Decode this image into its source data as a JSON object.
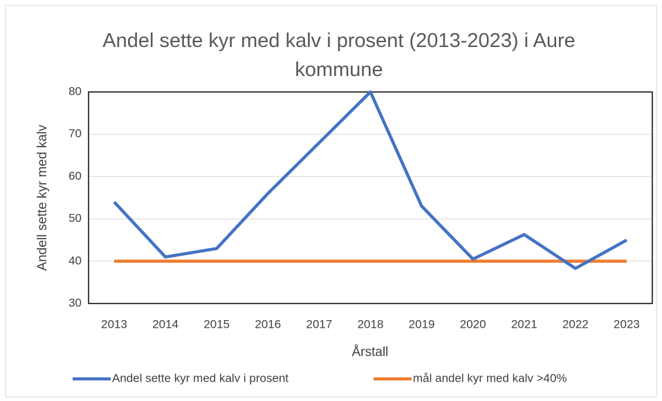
{
  "chart_data": {
    "type": "line",
    "title": "Andel sette kyr med kalv i prosent (2013-2023) i Aure kommune",
    "x_label": "Årstall",
    "y_label": "Andell sette kyr med kalv",
    "categories": [
      "2013",
      "2014",
      "2015",
      "2016",
      "2017",
      "2018",
      "2019",
      "2020",
      "2021",
      "2022",
      "2023"
    ],
    "series": [
      {
        "name": "Andel sette kyr med kalv i prosent",
        "color": "#4472c4",
        "values": [
          54,
          41,
          43,
          56,
          68,
          80,
          53,
          40.5,
          46.3,
          38.3,
          45
        ]
      },
      {
        "name": "mål andel kyr med kalv >40%",
        "color": "#ed7d31",
        "values": [
          40,
          40,
          40,
          40,
          40,
          40,
          40,
          40,
          40,
          40,
          40
        ]
      }
    ],
    "ylim": [
      30,
      80
    ],
    "yticks": [
      30,
      40,
      50,
      60,
      70,
      80
    ],
    "grid": true,
    "legend": "bottom"
  }
}
